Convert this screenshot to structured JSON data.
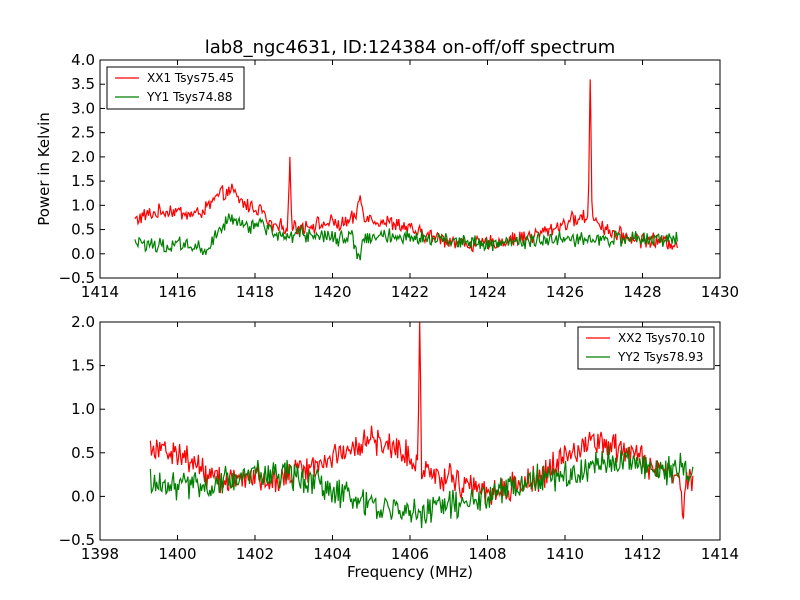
{
  "chart_data": [
    {
      "type": "line",
      "title": "lab8_ngc4631, ID:124384 on-off/off spectrum",
      "xlabel": "",
      "ylabel": "Power in Kelvin",
      "xlim": [
        1414,
        1430
      ],
      "ylim": [
        -0.5,
        4.0
      ],
      "xticks": [
        "1414",
        "1416",
        "1418",
        "1420",
        "1422",
        "1424",
        "1426",
        "1428",
        "1430"
      ],
      "yticks": [
        "−0.5",
        "0.0",
        "0.5",
        "1.0",
        "1.5",
        "2.0",
        "2.5",
        "3.0",
        "3.5",
        "4.0"
      ],
      "grid": false,
      "legend_position": "upper-left",
      "series": [
        {
          "name": "XX1 Tsys75.45",
          "color": "#ff0000",
          "x": [
            1414.9,
            1415.2,
            1415.5,
            1415.8,
            1416.1,
            1416.4,
            1416.7,
            1417.0,
            1417.2,
            1417.4,
            1417.6,
            1417.8,
            1418.0,
            1418.2,
            1418.3,
            1418.5,
            1418.7,
            1418.85,
            1418.9,
            1418.95,
            1419.1,
            1419.4,
            1419.7,
            1420.0,
            1420.2,
            1420.4,
            1420.6,
            1420.7,
            1420.8,
            1420.9,
            1421.1,
            1421.4,
            1421.7,
            1422.0,
            1422.3,
            1422.6,
            1422.9,
            1423.2,
            1423.5,
            1423.8,
            1424.1,
            1424.4,
            1424.7,
            1425.0,
            1425.3,
            1425.6,
            1425.9,
            1426.2,
            1426.5,
            1426.6,
            1426.65,
            1426.7,
            1426.8,
            1427.0,
            1427.3,
            1427.6,
            1427.9,
            1428.2,
            1428.5,
            1428.9
          ],
          "values": [
            0.7,
            0.8,
            0.85,
            0.9,
            0.85,
            0.8,
            0.9,
            1.15,
            1.25,
            1.3,
            1.1,
            1.0,
            0.95,
            0.9,
            0.65,
            0.55,
            0.55,
            0.6,
            2.0,
            0.55,
            0.55,
            0.6,
            0.6,
            0.65,
            0.6,
            0.65,
            0.75,
            1.2,
            0.85,
            0.75,
            0.7,
            0.65,
            0.6,
            0.5,
            0.4,
            0.35,
            0.3,
            0.25,
            0.2,
            0.2,
            0.22,
            0.25,
            0.3,
            0.35,
            0.4,
            0.5,
            0.6,
            0.7,
            0.75,
            0.8,
            3.6,
            0.8,
            0.7,
            0.55,
            0.4,
            0.35,
            0.3,
            0.28,
            0.25,
            0.22
          ]
        },
        {
          "name": "YY1 Tsys74.88",
          "color": "#008000",
          "x": [
            1414.9,
            1415.2,
            1415.5,
            1415.8,
            1416.1,
            1416.4,
            1416.7,
            1417.0,
            1417.2,
            1417.4,
            1417.6,
            1417.8,
            1418.0,
            1418.2,
            1418.5,
            1418.8,
            1419.1,
            1419.4,
            1419.7,
            1420.0,
            1420.3,
            1420.5,
            1420.6,
            1420.7,
            1420.8,
            1421.0,
            1421.4,
            1421.8,
            1422.2,
            1422.6,
            1423.0,
            1423.4,
            1423.8,
            1424.2,
            1424.6,
            1425.0,
            1425.4,
            1425.8,
            1426.2,
            1426.6,
            1427.0,
            1427.4,
            1427.8,
            1428.2,
            1428.6,
            1428.9
          ],
          "values": [
            0.2,
            0.2,
            0.15,
            0.2,
            0.2,
            0.15,
            0.05,
            0.4,
            0.6,
            0.7,
            0.65,
            0.55,
            0.6,
            0.6,
            0.4,
            0.35,
            0.4,
            0.4,
            0.35,
            0.35,
            0.3,
            0.4,
            0.0,
            -0.05,
            0.35,
            0.4,
            0.35,
            0.3,
            0.35,
            0.3,
            0.3,
            0.25,
            0.25,
            0.2,
            0.25,
            0.25,
            0.3,
            0.3,
            0.3,
            0.3,
            0.3,
            0.3,
            0.3,
            0.3,
            0.3,
            0.35
          ]
        }
      ]
    },
    {
      "type": "line",
      "title": "",
      "xlabel": "Frequency (MHz)",
      "ylabel": "",
      "xlim": [
        1398,
        1414
      ],
      "ylim": [
        -0.5,
        2.0
      ],
      "xticks": [
        "1398",
        "1400",
        "1402",
        "1404",
        "1406",
        "1408",
        "1410",
        "1412",
        "1414"
      ],
      "yticks": [
        "−0.5",
        "0.0",
        "0.5",
        "1.0",
        "1.5",
        "2.0"
      ],
      "grid": false,
      "legend_position": "upper-right",
      "series": [
        {
          "name": "XX2 Tsys70.10",
          "color": "#ff0000",
          "x": [
            1399.3,
            1399.6,
            1399.9,
            1400.2,
            1400.5,
            1400.8,
            1401.1,
            1401.4,
            1401.7,
            1402.0,
            1402.3,
            1402.6,
            1402.9,
            1403.2,
            1403.5,
            1403.8,
            1404.1,
            1404.4,
            1404.7,
            1405.0,
            1405.3,
            1405.6,
            1405.9,
            1406.1,
            1406.2,
            1406.25,
            1406.3,
            1406.5,
            1406.8,
            1407.1,
            1407.4,
            1407.7,
            1408.0,
            1408.3,
            1408.6,
            1408.9,
            1409.2,
            1409.5,
            1409.8,
            1410.1,
            1410.4,
            1410.7,
            1411.0,
            1411.3,
            1411.6,
            1411.9,
            1412.2,
            1412.5,
            1412.8,
            1413.0,
            1413.05,
            1413.1,
            1413.3
          ],
          "values": [
            0.6,
            0.55,
            0.5,
            0.45,
            0.35,
            0.25,
            0.2,
            0.2,
            0.18,
            0.2,
            0.2,
            0.22,
            0.25,
            0.3,
            0.35,
            0.4,
            0.5,
            0.55,
            0.6,
            0.65,
            0.6,
            0.55,
            0.5,
            0.45,
            0.4,
            2.0,
            0.3,
            0.3,
            0.25,
            0.2,
            0.15,
            0.1,
            0.05,
            0.05,
            0.1,
            0.15,
            0.2,
            0.25,
            0.4,
            0.5,
            0.55,
            0.6,
            0.6,
            0.55,
            0.5,
            0.45,
            0.35,
            0.3,
            0.25,
            0.2,
            -0.25,
            0.2,
            0.2
          ]
        },
        {
          "name": "YY2 Tsys78.93",
          "color": "#008000",
          "x": [
            1399.3,
            1399.6,
            1399.9,
            1400.2,
            1400.5,
            1400.8,
            1401.1,
            1401.4,
            1401.7,
            1402.0,
            1402.3,
            1402.6,
            1402.9,
            1403.2,
            1403.5,
            1403.8,
            1404.1,
            1404.4,
            1404.7,
            1405.0,
            1405.3,
            1405.6,
            1405.9,
            1406.2,
            1406.5,
            1406.8,
            1407.1,
            1407.4,
            1407.7,
            1408.0,
            1408.3,
            1408.6,
            1408.9,
            1409.2,
            1409.5,
            1409.8,
            1410.1,
            1410.4,
            1410.7,
            1411.0,
            1411.3,
            1411.6,
            1411.9,
            1412.2,
            1412.5,
            1412.8,
            1413.1,
            1413.3
          ],
          "values": [
            0.2,
            0.15,
            0.1,
            0.15,
            0.15,
            0.1,
            0.15,
            0.2,
            0.2,
            0.25,
            0.25,
            0.25,
            0.25,
            0.2,
            0.15,
            0.1,
            0.05,
            0.0,
            -0.05,
            -0.1,
            -0.1,
            -0.15,
            -0.15,
            -0.2,
            -0.15,
            -0.1,
            -0.1,
            -0.1,
            -0.05,
            0.0,
            0.05,
            0.1,
            0.15,
            0.2,
            0.2,
            0.25,
            0.25,
            0.3,
            0.35,
            0.4,
            0.4,
            0.4,
            0.35,
            0.35,
            0.3,
            0.3,
            0.35,
            0.3
          ]
        }
      ]
    }
  ]
}
